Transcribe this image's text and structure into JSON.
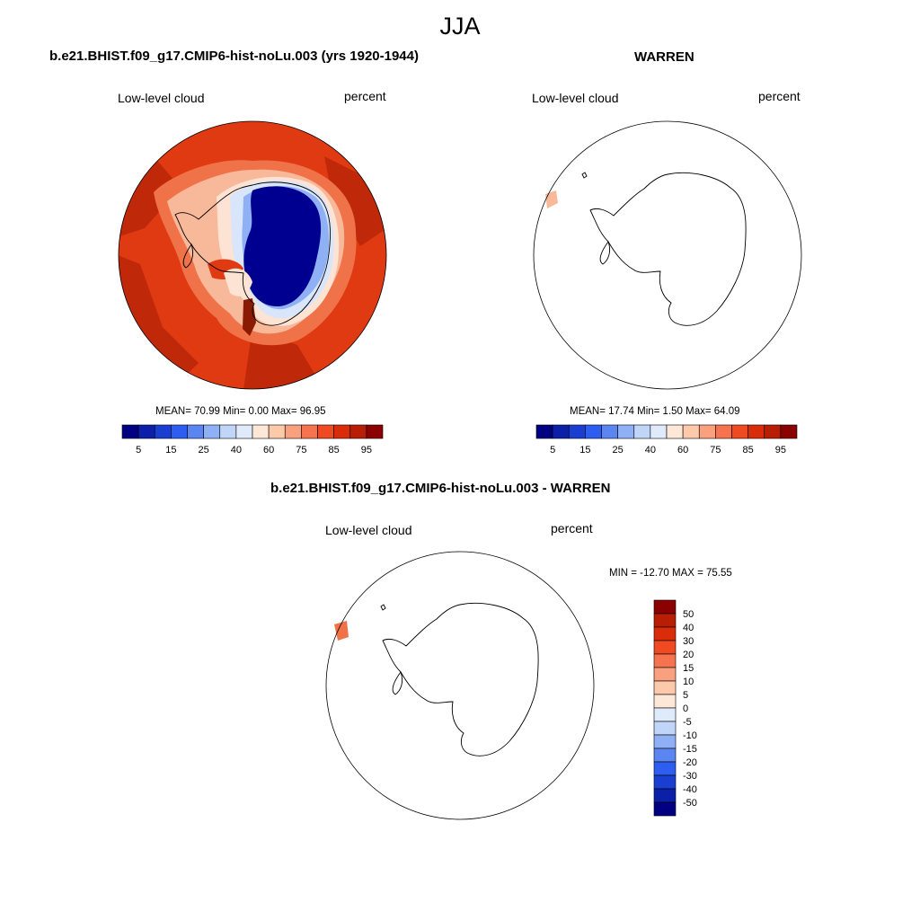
{
  "season": "JJA",
  "panels": [
    {
      "title": "b.e21.BHIST.f09_g17.CMIP6-hist-noLu.003 (yrs 1920-1944)",
      "variable": "Low-level cloud",
      "units": "percent",
      "stats": {
        "text": "MEAN=  70.99  Min=   0.00  Max=  96.95",
        "mean": 70.99,
        "min": 0.0,
        "max": 96.95
      }
    },
    {
      "title": "WARREN",
      "variable": "Low-level cloud",
      "units": "percent",
      "stats": {
        "text": "MEAN=  17.74  Min=   1.50  Max=  64.09",
        "mean": 17.74,
        "min": 1.5,
        "max": 64.09
      }
    },
    {
      "title": "b.e21.BHIST.f09_g17.CMIP6-hist-noLu.003 - WARREN",
      "variable": "Low-level cloud",
      "units": "percent",
      "stats": {
        "text": "MIN = -12.70 MAX =  75.55",
        "min": -12.7,
        "max": 75.55
      }
    }
  ],
  "colorbar_abs": {
    "tick_labels": [
      "5",
      "15",
      "25",
      "40",
      "60",
      "75",
      "85",
      "95"
    ],
    "colors": [
      "#000080",
      "#0b1fa8",
      "#1a3fd0",
      "#2e5ef0",
      "#5b86f2",
      "#8fb0f5",
      "#c0d5f8",
      "#dfeafb",
      "#fde8d8",
      "#fcc9ab",
      "#f9a07e",
      "#f5744f",
      "#ef4a22",
      "#d92d0a",
      "#b81e05",
      "#8b0000"
    ]
  },
  "colorbar_diff": {
    "tick_labels": [
      "50",
      "40",
      "30",
      "20",
      "15",
      "10",
      "5",
      "0",
      "-5",
      "-10",
      "-15",
      "-20",
      "-30",
      "-40",
      "-50"
    ],
    "colors": [
      "#8b0000",
      "#b81e05",
      "#d92d0a",
      "#ef4a22",
      "#f5744f",
      "#f9a07e",
      "#fcc9ab",
      "#fde8d8",
      "#dfeafb",
      "#c0d5f8",
      "#8fb0f5",
      "#5b86f2",
      "#2e5ef0",
      "#1a3fd0",
      "#0b1fa8",
      "#000080"
    ]
  },
  "colors": {
    "ocean_cloud": "#e03a12",
    "ocean_cloud_dark": "#c0280a",
    "ocean_cloud_darker": "#8b1a04",
    "coast_mid": "#f07248",
    "coast_light": "#f8b89a",
    "coast_pale": "#fde3d3",
    "ice_pale": "#d8e5fb",
    "ice_blue": "#8fb0f5",
    "interior": "#000090"
  }
}
